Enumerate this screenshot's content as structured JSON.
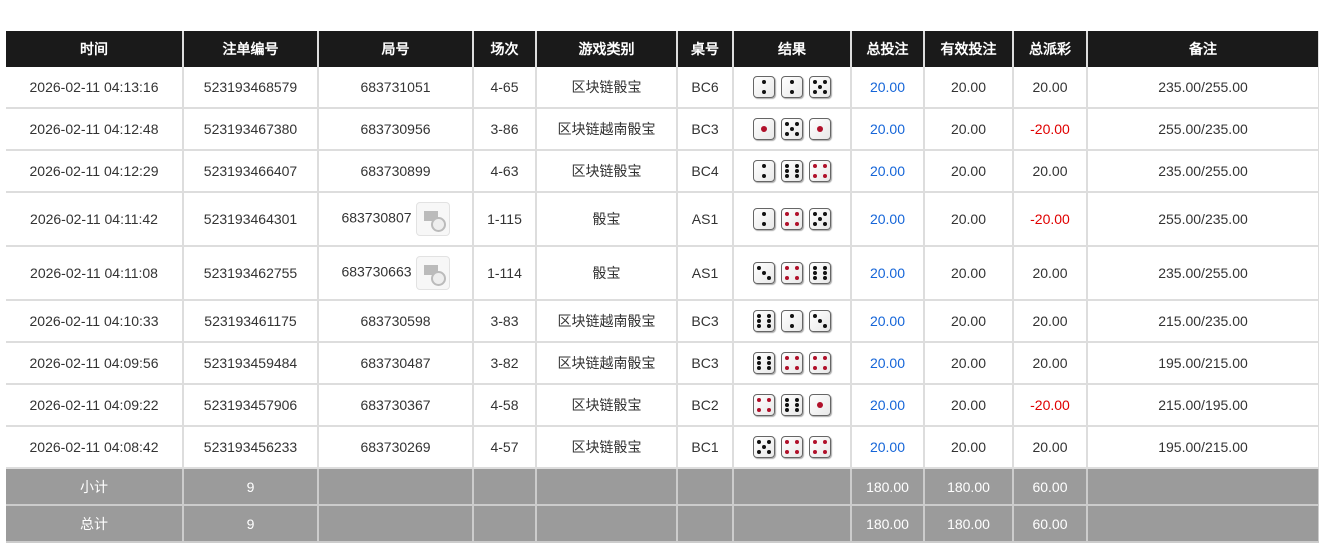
{
  "headers": [
    "时间",
    "注单编号",
    "局号",
    "场次",
    "游戏类别",
    "桌号",
    "结果",
    "总投注",
    "有效投注",
    "总派彩",
    "备注"
  ],
  "rows": [
    {
      "time": "2026-02-11 04:13:16",
      "bet_id": "523193468579",
      "round": "683731051",
      "video": false,
      "session": "4-65",
      "game": "区块链骰宝",
      "table": "BC6",
      "dice": [
        2,
        2,
        5
      ],
      "total_bet": "20.00",
      "valid_bet": "20.00",
      "payout": "20.00",
      "payout_negative": false,
      "note": "235.00/255.00"
    },
    {
      "time": "2026-02-11 04:12:48",
      "bet_id": "523193467380",
      "round": "683730956",
      "video": false,
      "session": "3-86",
      "game": "区块链越南骰宝",
      "table": "BC3",
      "dice": [
        1,
        5,
        1
      ],
      "total_bet": "20.00",
      "valid_bet": "20.00",
      "payout": "-20.00",
      "payout_negative": true,
      "note": "255.00/235.00"
    },
    {
      "time": "2026-02-11 04:12:29",
      "bet_id": "523193466407",
      "round": "683730899",
      "video": false,
      "session": "4-63",
      "game": "区块链骰宝",
      "table": "BC4",
      "dice": [
        2,
        6,
        4
      ],
      "total_bet": "20.00",
      "valid_bet": "20.00",
      "payout": "20.00",
      "payout_negative": false,
      "note": "235.00/255.00"
    },
    {
      "time": "2026-02-11 04:11:42",
      "bet_id": "523193464301",
      "round": "683730807",
      "video": true,
      "session": "1-115",
      "game": "骰宝",
      "table": "AS1",
      "dice": [
        2,
        4,
        5
      ],
      "total_bet": "20.00",
      "valid_bet": "20.00",
      "payout": "-20.00",
      "payout_negative": true,
      "note": "255.00/235.00"
    },
    {
      "time": "2026-02-11 04:11:08",
      "bet_id": "523193462755",
      "round": "683730663",
      "video": true,
      "session": "1-114",
      "game": "骰宝",
      "table": "AS1",
      "dice": [
        3,
        4,
        6
      ],
      "total_bet": "20.00",
      "valid_bet": "20.00",
      "payout": "20.00",
      "payout_negative": false,
      "note": "235.00/255.00"
    },
    {
      "time": "2026-02-11 04:10:33",
      "bet_id": "523193461175",
      "round": "683730598",
      "video": false,
      "session": "3-83",
      "game": "区块链越南骰宝",
      "table": "BC3",
      "dice": [
        6,
        2,
        3
      ],
      "total_bet": "20.00",
      "valid_bet": "20.00",
      "payout": "20.00",
      "payout_negative": false,
      "note": "215.00/235.00"
    },
    {
      "time": "2026-02-11 04:09:56",
      "bet_id": "523193459484",
      "round": "683730487",
      "video": false,
      "session": "3-82",
      "game": "区块链越南骰宝",
      "table": "BC3",
      "dice": [
        6,
        4,
        4
      ],
      "total_bet": "20.00",
      "valid_bet": "20.00",
      "payout": "20.00",
      "payout_negative": false,
      "note": "195.00/215.00"
    },
    {
      "time": "2026-02-11 04:09:22",
      "bet_id": "523193457906",
      "round": "683730367",
      "video": false,
      "session": "4-58",
      "game": "区块链骰宝",
      "table": "BC2",
      "dice": [
        4,
        6,
        1
      ],
      "total_bet": "20.00",
      "valid_bet": "20.00",
      "payout": "-20.00",
      "payout_negative": true,
      "note": "215.00/195.00"
    },
    {
      "time": "2026-02-11 04:08:42",
      "bet_id": "523193456233",
      "round": "683730269",
      "video": false,
      "session": "4-57",
      "game": "区块链骰宝",
      "table": "BC1",
      "dice": [
        5,
        4,
        4
      ],
      "total_bet": "20.00",
      "valid_bet": "20.00",
      "payout": "20.00",
      "payout_negative": false,
      "note": "195.00/215.00"
    }
  ],
  "subtotal": {
    "label": "小计",
    "count": "9",
    "total_bet": "180.00",
    "valid_bet": "180.00",
    "payout": "60.00"
  },
  "total": {
    "label": "总计",
    "count": "9",
    "total_bet": "180.00",
    "valid_bet": "180.00",
    "payout": "60.00"
  },
  "colors": {
    "header_bg": "#1a1a1a",
    "bet_blue": "#1565d8",
    "negative_red": "#e00000",
    "summary_bg": "#9b9b9b",
    "red_pip": "#b0102a"
  }
}
